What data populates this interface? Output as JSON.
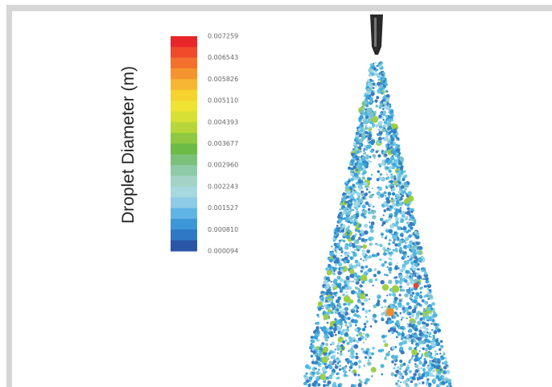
{
  "colorbar": {
    "title": "Droplet Diameter (m)",
    "labels": [
      "0.007259",
      "0.006543",
      "0.005826",
      "0.005110",
      "0.004393",
      "0.003677",
      "0.002960",
      "0.002243",
      "0.001527",
      "0.000810",
      "0.000094"
    ]
  }
}
